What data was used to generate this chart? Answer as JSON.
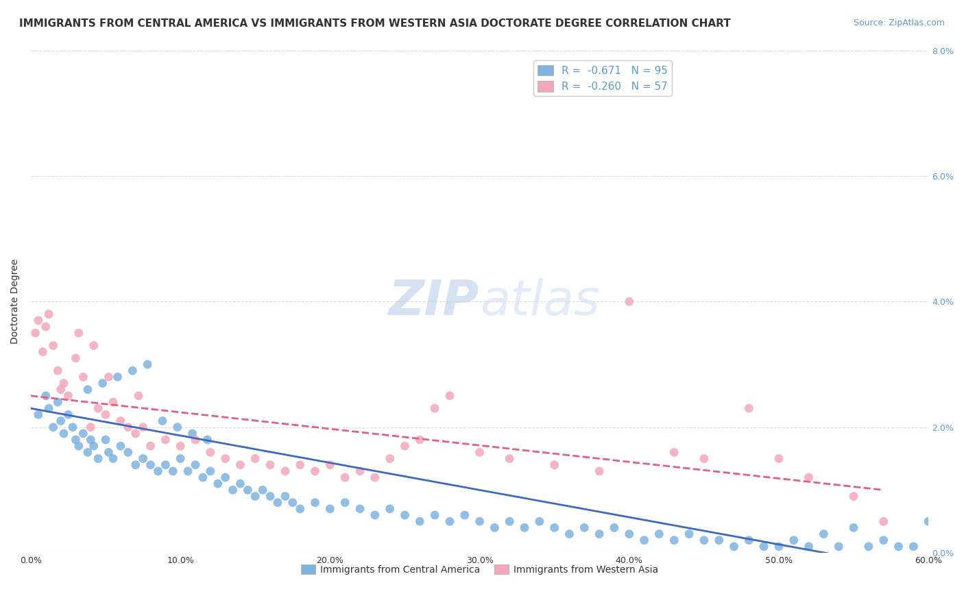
{
  "title": "IMMIGRANTS FROM CENTRAL AMERICA VS IMMIGRANTS FROM WESTERN ASIA DOCTORATE DEGREE CORRELATION CHART",
  "source": "Source: ZipAtlas.com",
  "xlabel_ticks": [
    "0.0%",
    "10.0%",
    "20.0%",
    "30.0%",
    "40.0%",
    "50.0%",
    "60.0%"
  ],
  "xlabel_vals": [
    0,
    10,
    20,
    30,
    40,
    50,
    60
  ],
  "ylabel_ticks": [
    "0.0%",
    "2.0%",
    "4.0%",
    "6.0%",
    "8.0%"
  ],
  "ylabel_vals": [
    0,
    2,
    4,
    6,
    8
  ],
  "ylabel_label": "Doctorate Degree",
  "legend_labels": [
    "Immigrants from Central America",
    "Immigrants from Western Asia"
  ],
  "legend_r": [
    "-0.671",
    "-0.260"
  ],
  "legend_n": [
    "95",
    "57"
  ],
  "blue_color": "#7eb3e0",
  "pink_color": "#f4a7b9",
  "blue_line_color": "#3a6bbf",
  "pink_line_color": "#e06080",
  "watermark_zip": "ZIP",
  "watermark_atlas": "atlas",
  "blue_scatter_x": [
    0.5,
    1.0,
    1.2,
    1.5,
    1.8,
    2.0,
    2.2,
    2.5,
    2.8,
    3.0,
    3.2,
    3.5,
    3.8,
    4.0,
    4.2,
    4.5,
    5.0,
    5.2,
    5.5,
    6.0,
    6.5,
    7.0,
    7.5,
    8.0,
    8.5,
    9.0,
    9.5,
    10.0,
    10.5,
    11.0,
    11.5,
    12.0,
    12.5,
    13.0,
    13.5,
    14.0,
    14.5,
    15.0,
    15.5,
    16.0,
    16.5,
    17.0,
    17.5,
    18.0,
    19.0,
    20.0,
    21.0,
    22.0,
    23.0,
    24.0,
    25.0,
    26.0,
    27.0,
    28.0,
    29.0,
    30.0,
    31.0,
    32.0,
    33.0,
    34.0,
    35.0,
    36.0,
    37.0,
    38.0,
    39.0,
    40.0,
    41.0,
    42.0,
    43.0,
    44.0,
    45.0,
    46.0,
    47.0,
    48.0,
    49.0,
    50.0,
    51.0,
    52.0,
    54.0,
    56.0,
    57.0,
    58.0,
    59.0,
    60.0,
    55.0,
    53.0,
    3.8,
    4.8,
    5.8,
    6.8,
    7.8,
    8.8,
    9.8,
    10.8,
    11.8
  ],
  "blue_scatter_y": [
    2.2,
    2.5,
    2.3,
    2.0,
    2.4,
    2.1,
    1.9,
    2.2,
    2.0,
    1.8,
    1.7,
    1.9,
    1.6,
    1.8,
    1.7,
    1.5,
    1.8,
    1.6,
    1.5,
    1.7,
    1.6,
    1.4,
    1.5,
    1.4,
    1.3,
    1.4,
    1.3,
    1.5,
    1.3,
    1.4,
    1.2,
    1.3,
    1.1,
    1.2,
    1.0,
    1.1,
    1.0,
    0.9,
    1.0,
    0.9,
    0.8,
    0.9,
    0.8,
    0.7,
    0.8,
    0.7,
    0.8,
    0.7,
    0.6,
    0.7,
    0.6,
    0.5,
    0.6,
    0.5,
    0.6,
    0.5,
    0.4,
    0.5,
    0.4,
    0.5,
    0.4,
    0.3,
    0.4,
    0.3,
    0.4,
    0.3,
    0.2,
    0.3,
    0.2,
    0.3,
    0.2,
    0.2,
    0.1,
    0.2,
    0.1,
    0.1,
    0.2,
    0.1,
    0.1,
    0.1,
    0.2,
    0.1,
    0.1,
    0.5,
    0.4,
    0.3,
    2.6,
    2.7,
    2.8,
    2.9,
    3.0,
    2.1,
    2.0,
    1.9,
    1.8
  ],
  "pink_scatter_x": [
    0.3,
    0.5,
    0.8,
    1.0,
    1.2,
    1.5,
    1.8,
    2.0,
    2.5,
    3.0,
    3.5,
    4.0,
    4.5,
    5.0,
    5.5,
    6.0,
    6.5,
    7.0,
    7.5,
    8.0,
    9.0,
    10.0,
    11.0,
    12.0,
    13.0,
    14.0,
    15.0,
    16.0,
    17.0,
    18.0,
    19.0,
    20.0,
    21.0,
    22.0,
    23.0,
    24.0,
    25.0,
    26.0,
    27.0,
    28.0,
    30.0,
    32.0,
    35.0,
    38.0,
    40.0,
    43.0,
    45.0,
    48.0,
    50.0,
    52.0,
    55.0,
    57.0,
    2.2,
    3.2,
    4.2,
    5.2,
    7.2
  ],
  "pink_scatter_y": [
    3.5,
    3.7,
    3.2,
    3.6,
    3.8,
    3.3,
    2.9,
    2.6,
    2.5,
    3.1,
    2.8,
    2.0,
    2.3,
    2.2,
    2.4,
    2.1,
    2.0,
    1.9,
    2.0,
    1.7,
    1.8,
    1.7,
    1.8,
    1.6,
    1.5,
    1.4,
    1.5,
    1.4,
    1.3,
    1.4,
    1.3,
    1.4,
    1.2,
    1.3,
    1.2,
    1.5,
    1.7,
    1.8,
    2.3,
    2.5,
    1.6,
    1.5,
    1.4,
    1.3,
    4.0,
    1.6,
    1.5,
    2.3,
    1.5,
    1.2,
    0.9,
    0.5,
    2.7,
    3.5,
    3.3,
    2.8,
    2.5
  ],
  "blue_line_x": [
    0,
    60
  ],
  "blue_line_y_start": 2.3,
  "blue_line_y_end": -0.3,
  "pink_line_x": [
    0,
    57
  ],
  "pink_line_y_start": 2.5,
  "pink_line_y_end": 1.0,
  "xlim": [
    0,
    60
  ],
  "ylim": [
    0,
    8
  ],
  "title_fontsize": 11,
  "source_fontsize": 9,
  "tick_fontsize": 9,
  "legend_fontsize": 11,
  "ylabel_fontsize": 10,
  "watermark_fontsize": 52
}
